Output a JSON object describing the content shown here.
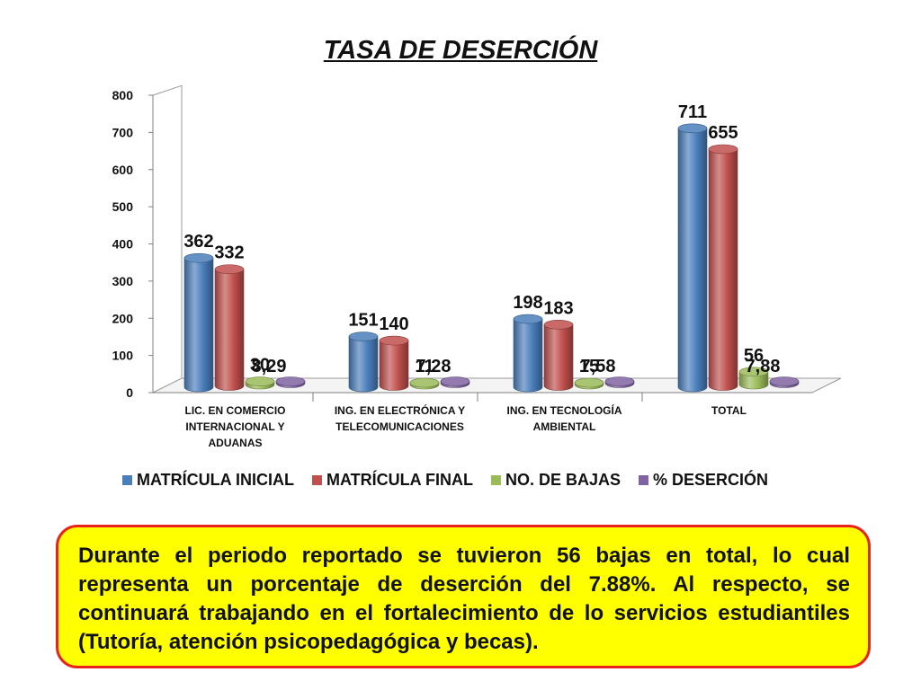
{
  "chart_data": {
    "type": "bar",
    "title": "TASA DE DESERCIÓN",
    "categories": [
      [
        "LIC. EN COMERCIO",
        "INTERNACIONAL Y",
        "ADUANAS"
      ],
      [
        "ING. EN ELECTRÓNICA Y",
        "TELECOMUNICACIONES"
      ],
      [
        "ING. EN TECNOLOGÍA",
        "AMBIENTAL"
      ],
      [
        "TOTAL"
      ]
    ],
    "series": [
      {
        "name": "MATRÍCULA INICIAL",
        "values": [
          362,
          151,
          198,
          711
        ],
        "labels": [
          "362",
          "151",
          "198",
          "711"
        ],
        "color": "#4a7ebb"
      },
      {
        "name": "MATRÍCULA FINAL",
        "values": [
          332,
          140,
          183,
          655
        ],
        "labels": [
          "332",
          "140",
          "183",
          "655"
        ],
        "color": "#c0504d"
      },
      {
        "name": "NO. DE BAJAS",
        "values": [
          30,
          11,
          15,
          56
        ],
        "labels": [
          "30",
          "11",
          "15",
          "56"
        ],
        "color": "#9bbb59"
      },
      {
        "name": "% DESERCIÓN",
        "values": [
          8.29,
          7.28,
          7.58,
          7.88
        ],
        "labels": [
          "8,29",
          "7,28",
          "7,58",
          "7,88"
        ],
        "color": "#8064a2"
      }
    ],
    "ylim": [
      0,
      800
    ],
    "yticks": [
      0,
      100,
      200,
      300,
      400,
      500,
      600,
      700,
      800
    ],
    "grid": false,
    "legend": "bottom",
    "style": "3d-cylinder"
  },
  "note": {
    "text": "Durante el periodo reportado se tuvieron 56 bajas en total, lo cual representa un porcentaje de deserción del 7.88%. Al respecto, se continuará trabajando en el fortalecimiento de lo servicios estudiantiles (Tutoría, atención psicopedagógica y becas).",
    "border_color": "#e8231c",
    "background_color": "#ffff00"
  }
}
